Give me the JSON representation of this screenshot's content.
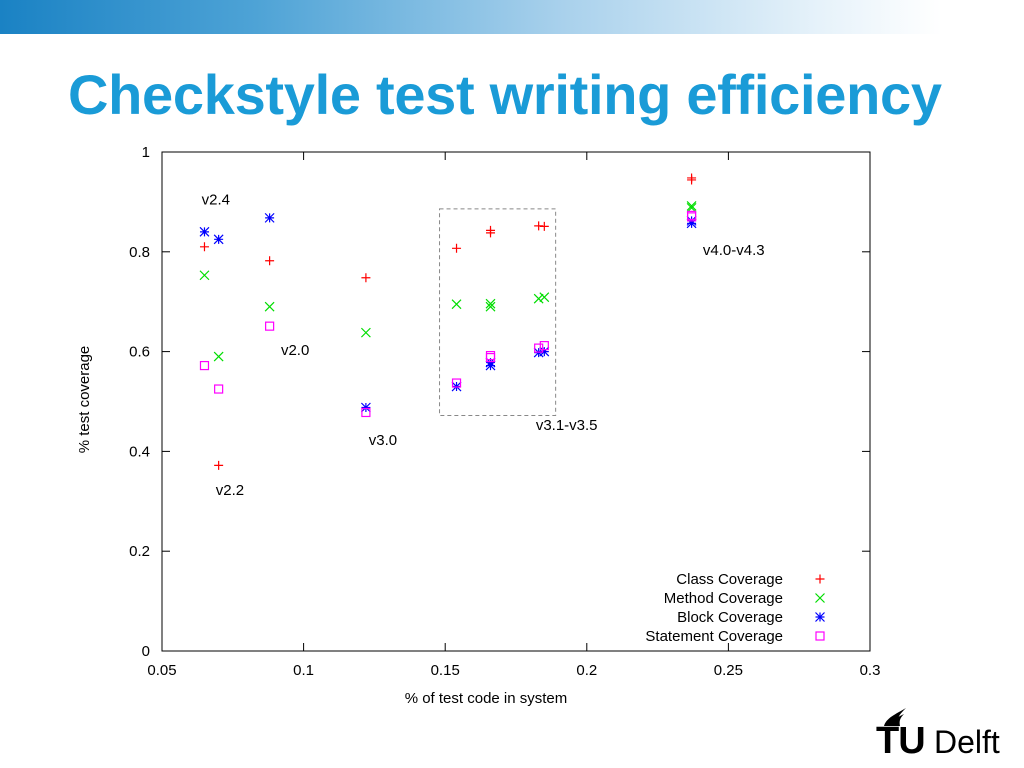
{
  "slide": {
    "title": "Checkstyle test writing efficiency",
    "accent_color": "#1a9bd7"
  },
  "logo": {
    "text_tu": "TU",
    "text_delft": "Delft",
    "icon": "flame-icon"
  },
  "chart_data": {
    "type": "scatter",
    "xlabel": "% of test code in system",
    "ylabel": "% test coverage",
    "xlim": [
      0.05,
      0.3
    ],
    "ylim": [
      0,
      1
    ],
    "xticks": [
      "0.05",
      "0.1",
      "0.15",
      "0.2",
      "0.25",
      "0.3"
    ],
    "xtick_values": [
      0.05,
      0.1,
      0.15,
      0.2,
      0.25,
      0.3
    ],
    "yticks": [
      "0",
      "0.2",
      "0.4",
      "0.6",
      "0.8",
      "1"
    ],
    "ytick_values": [
      0,
      0.2,
      0.4,
      0.6,
      0.8,
      1
    ],
    "grid": false,
    "legend_position": "bottom-right",
    "series": [
      {
        "name": "Class Coverage",
        "marker": "plus",
        "color": "#ff0000",
        "points": [
          [
            0.065,
            0.81
          ],
          [
            0.07,
            0.372
          ],
          [
            0.088,
            0.782
          ],
          [
            0.122,
            0.748
          ],
          [
            0.154,
            0.807
          ],
          [
            0.166,
            0.838
          ],
          [
            0.166,
            0.843
          ],
          [
            0.183,
            0.852
          ],
          [
            0.185,
            0.851
          ],
          [
            0.237,
            0.948
          ],
          [
            0.237,
            0.944
          ]
        ]
      },
      {
        "name": "Method Coverage",
        "marker": "cross",
        "color": "#00dd00",
        "points": [
          [
            0.065,
            0.753
          ],
          [
            0.07,
            0.59
          ],
          [
            0.088,
            0.69
          ],
          [
            0.122,
            0.638
          ],
          [
            0.154,
            0.695
          ],
          [
            0.166,
            0.69
          ],
          [
            0.166,
            0.696
          ],
          [
            0.183,
            0.706
          ],
          [
            0.185,
            0.709
          ],
          [
            0.237,
            0.892
          ],
          [
            0.237,
            0.888
          ]
        ]
      },
      {
        "name": "Block Coverage",
        "marker": "star",
        "color": "#0000ff",
        "points": [
          [
            0.065,
            0.84
          ],
          [
            0.07,
            0.825
          ],
          [
            0.088,
            0.868
          ],
          [
            0.122,
            0.488
          ],
          [
            0.154,
            0.53
          ],
          [
            0.166,
            0.572
          ],
          [
            0.166,
            0.578
          ],
          [
            0.183,
            0.598
          ],
          [
            0.185,
            0.6
          ],
          [
            0.237,
            0.857
          ],
          [
            0.237,
            0.862
          ]
        ]
      },
      {
        "name": "Statement Coverage",
        "marker": "square",
        "color": "#ff00ff",
        "points": [
          [
            0.065,
            0.572
          ],
          [
            0.07,
            0.525
          ],
          [
            0.088,
            0.651
          ],
          [
            0.122,
            0.478
          ],
          [
            0.154,
            0.537
          ],
          [
            0.166,
            0.588
          ],
          [
            0.166,
            0.592
          ],
          [
            0.183,
            0.607
          ],
          [
            0.185,
            0.612
          ],
          [
            0.237,
            0.873
          ],
          [
            0.237,
            0.87
          ]
        ]
      }
    ],
    "annotations": [
      {
        "text": "v2.4",
        "x": 0.064,
        "y": 0.895
      },
      {
        "text": "v2.0",
        "x": 0.092,
        "y": 0.593
      },
      {
        "text": "v3.0",
        "x": 0.123,
        "y": 0.413
      },
      {
        "text": "v2.2",
        "x": 0.069,
        "y": 0.313
      },
      {
        "text": "v3.1-v3.5",
        "x": 0.182,
        "y": 0.443
      },
      {
        "text": "v4.0-v4.3",
        "x": 0.241,
        "y": 0.794
      }
    ],
    "highlight_box": {
      "x0": 0.148,
      "x1": 0.189,
      "y0": 0.472,
      "y1": 0.886
    }
  }
}
